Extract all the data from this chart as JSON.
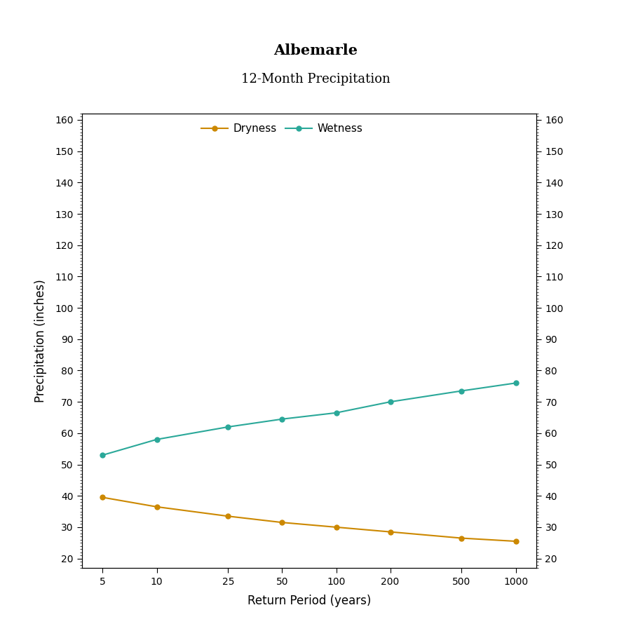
{
  "title": "Albemarle",
  "subtitle": "12-Month Precipitation",
  "xlabel": "Return Period (years)",
  "ylabel": "Precipitation (inches)",
  "return_periods": [
    5,
    10,
    25,
    50,
    100,
    200,
    500,
    1000
  ],
  "dryness_values": [
    39.5,
    36.5,
    33.5,
    31.5,
    30.0,
    28.5,
    26.5,
    25.5
  ],
  "wetness_values": [
    53.0,
    58.0,
    62.0,
    64.5,
    66.5,
    70.0,
    73.5,
    76.0
  ],
  "dryness_color": "#CC8800",
  "wetness_color": "#2AA899",
  "ylim": [
    17,
    162
  ],
  "yticks": [
    20,
    30,
    40,
    50,
    60,
    70,
    80,
    90,
    100,
    110,
    120,
    130,
    140,
    150,
    160
  ],
  "background_color": "#FFFFFF",
  "plot_bg_color": "#FFFFFF",
  "title_fontsize": 15,
  "subtitle_fontsize": 13,
  "axis_label_fontsize": 12,
  "tick_fontsize": 10,
  "legend_fontsize": 11,
  "line_width": 1.5,
  "marker_size": 5
}
